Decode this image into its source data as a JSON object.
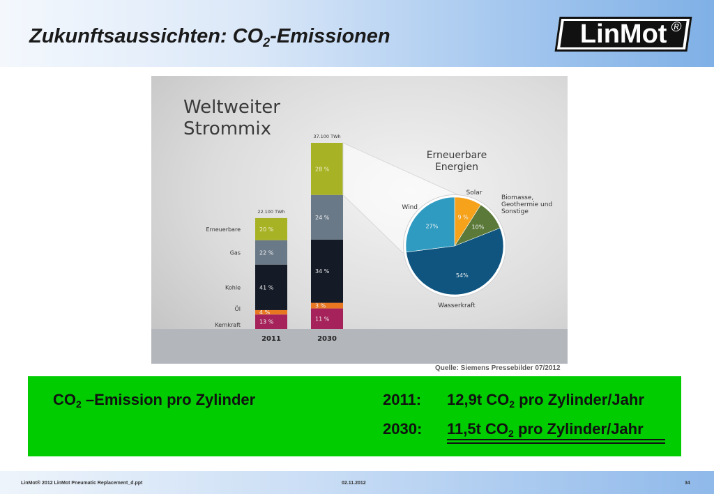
{
  "header": {
    "title_pre": "Zukunftsaussichten: CO",
    "title_sub": "2",
    "title_post": "-Emissionen",
    "logo_text": "LinMot",
    "logo_reg": "®"
  },
  "chart_data": [
    {
      "type": "bar",
      "stacked": true,
      "title_line1": "Weltweiter",
      "title_line2": "Strommix",
      "categories": [
        "2011",
        "2030"
      ],
      "totals": [
        "22.100 TWh",
        "37.100 TWh"
      ],
      "series": [
        {
          "name": "Kernkraft",
          "values": [
            13,
            11
          ],
          "labels": [
            "13 %",
            "11 %"
          ],
          "color": "#a5235a"
        },
        {
          "name": "Öl",
          "values": [
            4,
            3
          ],
          "labels": [
            "4 %",
            "3 %"
          ],
          "color": "#e87722"
        },
        {
          "name": "Kohle",
          "values": [
            41,
            34
          ],
          "labels": [
            "41 %",
            "34 %"
          ],
          "color": "#141a26"
        },
        {
          "name": "Gas",
          "values": [
            22,
            24
          ],
          "labels": [
            "22 %",
            "24 %"
          ],
          "color": "#6a7988"
        },
        {
          "name": "Erneuerbare",
          "values": [
            20,
            28
          ],
          "labels": [
            "20 %",
            "28 %"
          ],
          "color": "#a8b225"
        }
      ],
      "ylim": [
        0,
        37100
      ]
    },
    {
      "type": "pie",
      "title_line1": "Erneuerbare",
      "title_line2": "Energien",
      "slices": [
        {
          "name": "Solar",
          "value": 9,
          "label": "9 %",
          "color": "#f7a21b"
        },
        {
          "name": "Biomasse, Geothermie und Sonstige",
          "name_lines": [
            "Biomasse,",
            "Geothermie und",
            "Sonstige"
          ],
          "value": 10,
          "label": "10%",
          "color": "#5b7a3a"
        },
        {
          "name": "Wasserkraft",
          "value": 54,
          "label": "54%",
          "color": "#0f5580"
        },
        {
          "name": "Wind",
          "value": 27,
          "label": "27%",
          "color": "#2f9bc1"
        }
      ]
    }
  ],
  "source": "Quelle: Siemens Pressebilder 07/2012",
  "emission": {
    "label_pre": "CO",
    "label_sub": "2",
    "label_post": " –Emission pro Zylinder",
    "rows": [
      {
        "year": "2011:",
        "value_pre": "12,9t CO",
        "value_sub": "2",
        "value_post": " pro Zylinder/Jahr"
      },
      {
        "year": "2030:",
        "value_pre": "11,5t CO",
        "value_sub": "2",
        "value_post": " pro Zylinder/Jahr"
      }
    ]
  },
  "footer": {
    "left": "LinMot® 2012 LinMot Pneumatic Replacement_d.ppt",
    "date": "02.11.2012",
    "page": "34"
  }
}
